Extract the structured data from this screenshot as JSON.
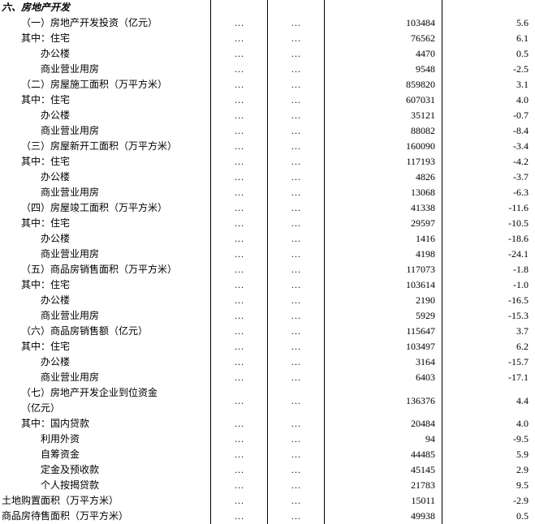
{
  "section_title": "六、房地产开发",
  "ellipsis": "…",
  "rows": [
    {
      "label": "（一）房地产开发投资（亿元）",
      "indent": "indent-1",
      "v1": "103484",
      "v2": "5.6"
    },
    {
      "label": "其中：住宅",
      "indent": "indent-1",
      "v1": "76562",
      "v2": "6.1"
    },
    {
      "label": "办公楼",
      "indent": "indent-2",
      "v1": "4470",
      "v2": "0.5"
    },
    {
      "label": "商业营业用房",
      "indent": "indent-2",
      "v1": "9548",
      "v2": "-2.5"
    },
    {
      "label": "（二）房屋施工面积（万平方米）",
      "indent": "indent-1",
      "v1": "859820",
      "v2": "3.1"
    },
    {
      "label": "其中：住宅",
      "indent": "indent-1",
      "v1": "607031",
      "v2": "4.0"
    },
    {
      "label": "办公楼",
      "indent": "indent-2",
      "v1": "35121",
      "v2": "-0.7"
    },
    {
      "label": "商业营业用房",
      "indent": "indent-2",
      "v1": "88082",
      "v2": "-8.4"
    },
    {
      "label": "（三）房屋新开工面积（万平方米）",
      "indent": "indent-1",
      "v1": "160090",
      "v2": "-3.4"
    },
    {
      "label": "其中：住宅",
      "indent": "indent-1",
      "v1": "117193",
      "v2": "-4.2"
    },
    {
      "label": "办公楼",
      "indent": "indent-2",
      "v1": "4826",
      "v2": "-3.7"
    },
    {
      "label": "商业营业用房",
      "indent": "indent-2",
      "v1": "13068",
      "v2": "-6.3"
    },
    {
      "label": "（四）房屋竣工面积（万平方米）",
      "indent": "indent-1",
      "v1": "41338",
      "v2": "-11.6"
    },
    {
      "label": "其中：住宅",
      "indent": "indent-1",
      "v1": "29597",
      "v2": "-10.5"
    },
    {
      "label": "办公楼",
      "indent": "indent-2",
      "v1": "1416",
      "v2": "-18.6"
    },
    {
      "label": "商业营业用房",
      "indent": "indent-2",
      "v1": "4198",
      "v2": "-24.1"
    },
    {
      "label": "（五）商品房销售面积（万平方米）",
      "indent": "indent-1",
      "v1": "117073",
      "v2": "-1.8"
    },
    {
      "label": "其中：住宅",
      "indent": "indent-1",
      "v1": "103614",
      "v2": "-1.0"
    },
    {
      "label": "办公楼",
      "indent": "indent-2",
      "v1": "2190",
      "v2": "-16.5"
    },
    {
      "label": "商业营业用房",
      "indent": "indent-2",
      "v1": "5929",
      "v2": "-15.3"
    },
    {
      "label": "（六）商品房销售额（亿元）",
      "indent": "indent-1",
      "v1": "115647",
      "v2": "3.7"
    },
    {
      "label": "其中：住宅",
      "indent": "indent-1",
      "v1": "103497",
      "v2": "6.2"
    },
    {
      "label": "办公楼",
      "indent": "indent-2",
      "v1": "3164",
      "v2": "-15.7"
    },
    {
      "label": "商业营业用房",
      "indent": "indent-2",
      "v1": "6403",
      "v2": "-17.1"
    },
    {
      "label": "（七）房地产开发企业到位资金\n（亿元）",
      "indent": "indent-1",
      "v1": "136376",
      "v2": "4.4",
      "tall": true
    },
    {
      "label": "其中：国内贷款",
      "indent": "indent-1",
      "v1": "20484",
      "v2": "4.0"
    },
    {
      "label": "利用外资",
      "indent": "indent-2",
      "v1": "94",
      "v2": "-9.5"
    },
    {
      "label": "自筹资金",
      "indent": "indent-2",
      "v1": "44485",
      "v2": "5.9"
    },
    {
      "label": "定金及预收款",
      "indent": "indent-2",
      "v1": "45145",
      "v2": "2.9"
    },
    {
      "label": "个人按揭贷款",
      "indent": "indent-2",
      "v1": "21783",
      "v2": "9.5"
    },
    {
      "label": "土地购置面积（万平方米）",
      "indent": "",
      "v1": "15011",
      "v2": "-2.9"
    },
    {
      "label": "商品房待售面积（万平方米）",
      "indent": "",
      "v1": "49938",
      "v2": "0.5"
    }
  ]
}
